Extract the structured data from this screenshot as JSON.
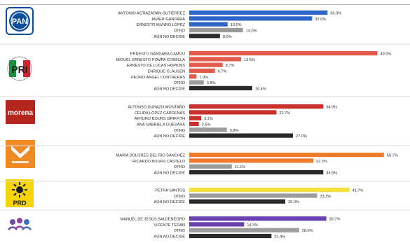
{
  "chart_data": {
    "type": "bar",
    "orientation": "horizontal",
    "value_suffix": "%",
    "groups": [
      {
        "party": "PAN",
        "logo_text": "PAN",
        "logo_color": "#0a4d9c",
        "bar_color": "#2e63c8",
        "categories": [
          "ANTONIO ASTIAZARÁN GUTIÉRREZ",
          "JAVIER GÁNDARA",
          "ERNESTO MUNRO LÓPEZ",
          "OTRO",
          "AÚN NO DECIDE"
        ],
        "values": [
          36.0,
          32.0,
          10.0,
          14.0,
          8.0
        ],
        "labels": [
          "36.0%",
          "32.0%",
          "10.0%",
          "14.0%",
          "8.0%"
        ]
      },
      {
        "party": "PRI",
        "logo_text": "PRI",
        "logo_color": "#d2232a",
        "bar_color": "#e25a4a",
        "categories": [
          "ERNESTO GÁNDARA CAMOU",
          "MIGUEL ERNESTO POMPA CORELLA",
          "ERNESTO DE LUCAS HOPKINS",
          "ENRIQUE CLAUSEN",
          "PEDRO ÁNGEL CONTRERAS",
          "OTRO",
          "AÚN NO DECIDE"
        ],
        "values": [
          49.0,
          13.5,
          8.7,
          6.7,
          1.9,
          3.8,
          16.4
        ],
        "labels": [
          "49.0%",
          "13.5%",
          "8.7%",
          "6.7%",
          "1.9%",
          "3.8%",
          "16.4%"
        ]
      },
      {
        "party": "morena",
        "logo_text": "morena",
        "logo_color": "#b5261e",
        "bar_color": "#c9302c",
        "categories": [
          "ALFONSO DURAZO MONTAÑO",
          "CELIDA LÓPEZ CÁRDENAS",
          "ARTURO BOURS GRIFFITH",
          "ANA GABRIELA GUEVARA",
          "OTRO",
          "AÚN NO DECIDE"
        ],
        "values": [
          34.9,
          22.7,
          3.1,
          2.5,
          9.8,
          27.0
        ],
        "labels": [
          "34.9%",
          "22.7%",
          "3.1%",
          "2.5%",
          "9.8%",
          "27.0%"
        ]
      },
      {
        "party": "MC",
        "logo_text": "",
        "logo_color": "#f08a24",
        "bar_color": "#ee7a2e",
        "categories": [
          "MARÍA DOLORES DEL RÍO SÁNCHEZ",
          "RICARDO BOURS CASTELO",
          "OTRO",
          "AÚN NO DECIDE"
        ],
        "values": [
          50.7,
          32.3,
          11.1,
          34.9
        ],
        "labels": [
          "50.7%",
          "32.3%",
          "11.1%",
          "34.9%"
        ]
      },
      {
        "party": "PRD",
        "logo_text": "PRD",
        "logo_color": "#f5d40a",
        "bar_color": "#f2e23a",
        "categories": [
          "PETRA SANTOS",
          "OTRO",
          "AÚN NO DECIDE"
        ],
        "values": [
          41.7,
          33.3,
          25.0
        ],
        "labels": [
          "41.7%",
          "33.3%",
          "25.0%"
        ]
      },
      {
        "party": "PES",
        "logo_text": "",
        "logo_color": "#6b4aa8",
        "bar_color": "#6a3fae",
        "categories": [
          "MANUEL DE JESÚS BALDENEGRO",
          "VICENTE TERÁN",
          "OTRO",
          "AÚN NO DECIDE"
        ],
        "values": [
          35.7,
          14.3,
          28.6,
          21.4
        ],
        "labels": [
          "35.7%",
          "14.3%",
          "28.6%",
          "21.4%"
        ]
      }
    ],
    "other_color": "#9c9c9c",
    "undecided_color": "#2a2a2a",
    "xlim": [
      0,
      52
    ]
  }
}
